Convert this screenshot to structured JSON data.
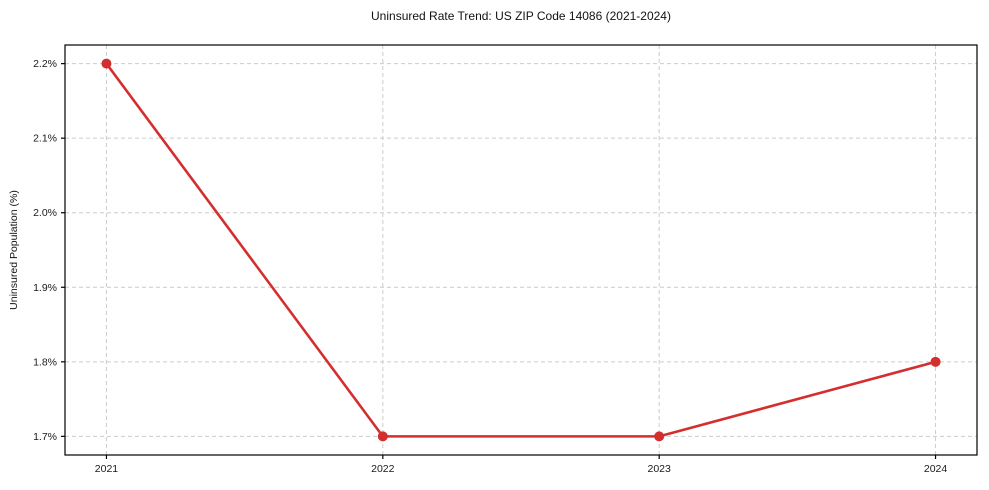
{
  "chart_data": {
    "type": "line",
    "title": "Uninsured Rate Trend: US ZIP Code 14086 (2021-2024)",
    "xlabel": "",
    "ylabel": "Uninsured Population (%)",
    "x": [
      2021,
      2022,
      2023,
      2024
    ],
    "x_tick_labels": [
      "2021",
      "2022",
      "2023",
      "2024"
    ],
    "y_ticks": [
      1.7,
      1.8,
      1.9,
      2.0,
      2.1,
      2.2
    ],
    "y_tick_labels": [
      "1.7%",
      "1.8%",
      "1.9%",
      "2.0%",
      "2.1%",
      "2.2%"
    ],
    "series": [
      {
        "name": "Uninsured rate (%)",
        "values": [
          2.2,
          1.7,
          1.7,
          1.8
        ],
        "color": "#d32f2f",
        "marker": "circle"
      }
    ],
    "xlim": [
      2020.85,
      2024.15
    ],
    "ylim": [
      1.675,
      2.225
    ],
    "grid": true,
    "grid_style": "dashed",
    "legend_position": "none",
    "colors": {
      "line": "#d32f2f",
      "grid": "#cccccc",
      "axis": "#000000",
      "text": "#1a1a1a",
      "background": "#ffffff"
    }
  }
}
